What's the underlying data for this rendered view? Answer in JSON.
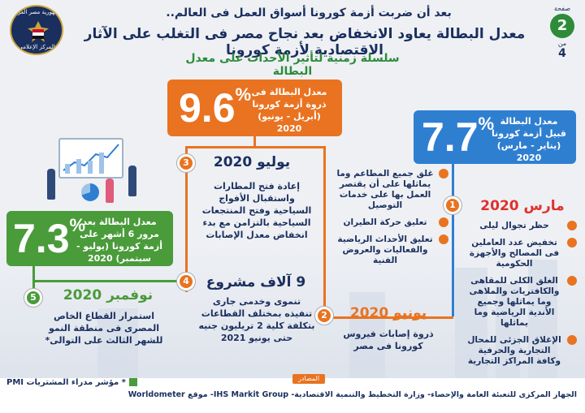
{
  "header": {
    "subhead": "بعد أن ضربت أزمة كورونا أسواق العمل فى العالم..",
    "headline": "معدل البطالة يعاود الانخفاض بعد نجاح مصر فى التغلب على الآثار الاقتصادية لأزمة كورونا",
    "tagline": "سلسلة زمنية لتأثير الأحداث على معدل البطالة",
    "logo_top": "جمهورية مصر العربية",
    "logo_bottom": "المركز الإعلامي",
    "page_label": "صفحة",
    "page_num": "2",
    "page_of": "من",
    "page_total": "4"
  },
  "stats": {
    "before": {
      "value": "7.7",
      "pct": "%",
      "text": "معدل البطالة قبيل أزمة كورونا (يناير - مارس) 2020"
    },
    "during": {
      "value": "9.6",
      "pct": "%",
      "text": "معدل البطالة فى ذروة أزمة كورونا (أبريل - يونيو) 2020"
    },
    "after": {
      "value": "7.3",
      "pct": "%",
      "text": "معدل البطالة بعد مرور 6 أشهر على أزمة كورونا (يوليو - سبتمبر) 2020"
    }
  },
  "timeline": {
    "n1": {
      "num": "1",
      "date": "مارس 2020",
      "items": [
        "غلق جميع المطاعم وما يماثلها على أن يقتصر العمل بها على خدمات التوصيل",
        "تعليق حركة الطيران",
        "تعليق الأحداث الرياضية والفعاليات والعروض الفنية"
      ],
      "items2": [
        "حظر تجوال ليلى",
        "تخفيض عدد العاملين فى المصالح والأجهزة الحكومية",
        "الغلق الكلى للمقاهى والكافتريات والملاهى وما يماثلها وجميع الأندية الرياضية وما يماثلها",
        "الإغلاق الجزئى للمحال التجارية والحرفية وكافة المراكز التجارية"
      ]
    },
    "n2": {
      "num": "2",
      "date": "يونيو 2020",
      "text": "ذروة إصابات فيروس كورونا فى مصر"
    },
    "n3": {
      "num": "3",
      "date": "يوليو 2020",
      "text": "إعادة فتح المطارات واستقبال الأفواج السياحية وفتح المنتجعات السياحية بالتزامن مع بدء انخفاض معدل الإصابات"
    },
    "n4": {
      "num": "4",
      "date": "9 آلاف مشروع",
      "text": "تنموى وخدمى جارى تنفيذه بمختلف القطاعات بتكلفة كلية 2 تريليون جنيه حتى يونيو 2021"
    },
    "n5": {
      "num": "5",
      "date": "نوفمبر 2020",
      "text": "استمرار القطاع الخاص المصرى فى منطقة النمو للشهر الثالث على التوالى*"
    }
  },
  "footer": {
    "pmi_note": "* مؤشر مدراء المشتريات PMI",
    "sources_label": "المصادر",
    "sources": "الجهاز المركزى للتعبئة العامة والإحصاء- وزارة التخطيط والتنمية الاقتصادية- IHS Markit Group- موقع Worldometer"
  },
  "colors": {
    "navy": "#1a2f5e",
    "orange": "#e97320",
    "blue": "#2f7fd1",
    "green": "#4a9b3a",
    "red": "#e0302b"
  }
}
